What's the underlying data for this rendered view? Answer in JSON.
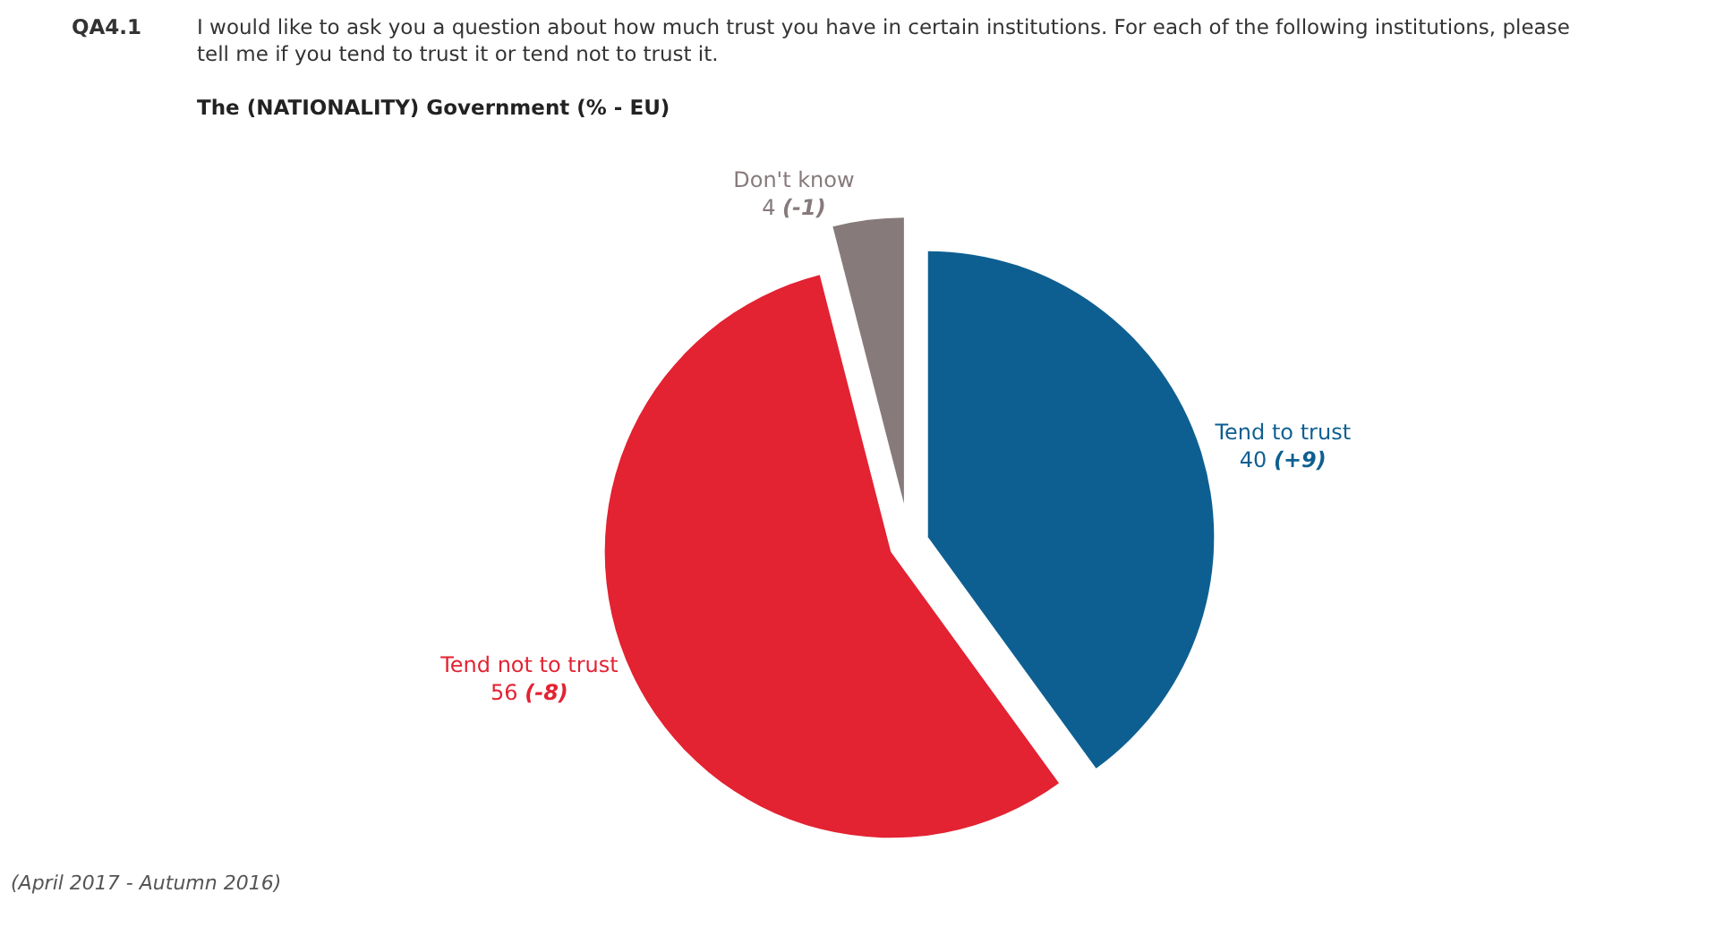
{
  "chart_data": {
    "type": "pie",
    "title": "I would like to ask you a question about how much trust you have in certain institutions. For each of the following institutions, please tell me if you tend to trust it or tend not to trust it.",
    "subtitle": "The (NATIONALITY) Government (% - EU)",
    "annotations": [
      "QA4.1",
      "(April 2017 - Autumn 2016)"
    ],
    "categories": [
      "Tend to trust",
      "Tend not to trust",
      "Don't know"
    ],
    "values": [
      40,
      56,
      4
    ],
    "value_labels": [
      "40 (+9)",
      "56 (-8)",
      "4 (-1)"
    ],
    "colors": [
      "#0e5f91",
      "#e32232",
      "#877a7b"
    ]
  }
}
